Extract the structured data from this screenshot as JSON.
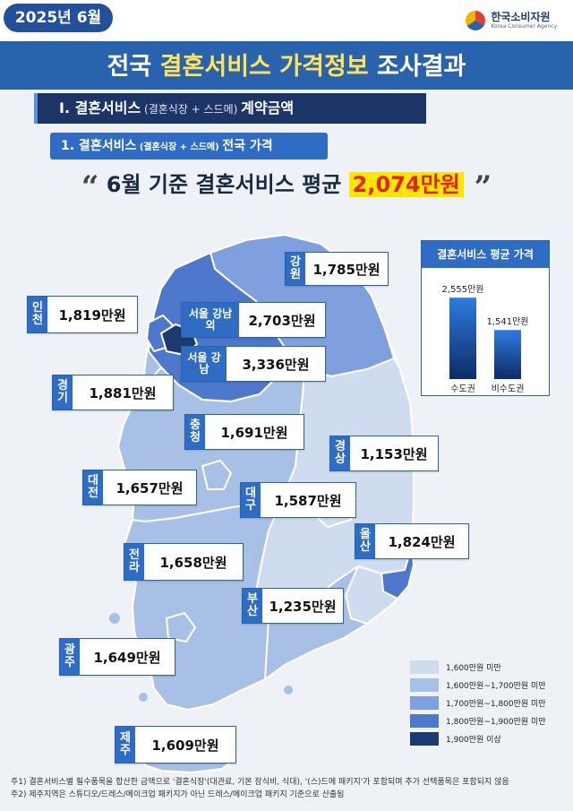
{
  "header": {
    "date": "2025년 6월",
    "title_pre": "전국 ",
    "title_hl": "결혼서비스 가격정보",
    "title_post": " 조사결과",
    "logo_ko": "한국소비자원",
    "logo_en": "Korea Consumer Agency"
  },
  "section1": {
    "label": "Ⅰ. 결혼서비스",
    "sub": " (결혼식장 + 스드메) ",
    "tail": "계약금액"
  },
  "section2": {
    "label": "1. 결혼서비스",
    "sub": " (결혼식장 + 스드메) ",
    "tail": "전국 가격"
  },
  "headline": {
    "open": "“",
    "pre": " 6월 기준 결혼서비스 평균 ",
    "value": "2,074만원",
    "close": " ”"
  },
  "colors": {
    "brand": "#2a63ad",
    "dark": "#1d3566",
    "highlight": "#ffe600",
    "headline_red": "#e3231b",
    "bin1": "#cfdcf0",
    "bin2": "#a9c0e6",
    "bin3": "#7f9fde",
    "bin4": "#4d78cc",
    "bin5": "#1e3a72"
  },
  "chart_data": [
    {
      "type": "map",
      "unit": "만원",
      "regions": [
        {
          "name": "강원",
          "value": 1785,
          "label": "1,785만원"
        },
        {
          "name": "인천",
          "value": 1819,
          "label": "1,819만원"
        },
        {
          "name": "서울 강남 외",
          "value": 2703,
          "label": "2,703만원"
        },
        {
          "name": "서울 강남",
          "value": 3336,
          "label": "3,336만원"
        },
        {
          "name": "경기",
          "value": 1881,
          "label": "1,881만원"
        },
        {
          "name": "충청",
          "value": 1691,
          "label": "1,691만원"
        },
        {
          "name": "경상",
          "value": 1153,
          "label": "1,153만원"
        },
        {
          "name": "대전",
          "value": 1657,
          "label": "1,657만원"
        },
        {
          "name": "대구",
          "value": 1587,
          "label": "1,587만원"
        },
        {
          "name": "울산",
          "value": 1824,
          "label": "1,824만원"
        },
        {
          "name": "전라",
          "value": 1658,
          "label": "1,658만원"
        },
        {
          "name": "부산",
          "value": 1235,
          "label": "1,235만원"
        },
        {
          "name": "광주",
          "value": 1649,
          "label": "1,649만원"
        },
        {
          "name": "제주",
          "value": 1609,
          "label": "1,609만원"
        }
      ],
      "legend": [
        "1,600만원 미만",
        "1,600만원~1,700만원 미만",
        "1,700만원~1,800만원 미만",
        "1,800만원~1,900만원 미만",
        "1,900만원 이상"
      ]
    },
    {
      "type": "bar",
      "title": "결혼서비스 평균 가격",
      "categories": [
        "수도권",
        "비수도권"
      ],
      "values": [
        2555,
        1541
      ],
      "labels": [
        "2,555만원",
        "1,541만원"
      ],
      "ylim": [
        0,
        2700
      ]
    }
  ],
  "notes": [
    "주1) 결혼서비스별 필수품목을 합산한 금액으로 '결혼식장'(대관료, 기본 장식비, 식대), '(스)드메 패키지'가 포함되며 추가 선택품목은 포함되지 않음",
    "주2) 제주지역은 스튜디오/드레스/메이크업 패키지가 아닌 드레스/메이크업 패키지 기준으로 산출됨"
  ]
}
